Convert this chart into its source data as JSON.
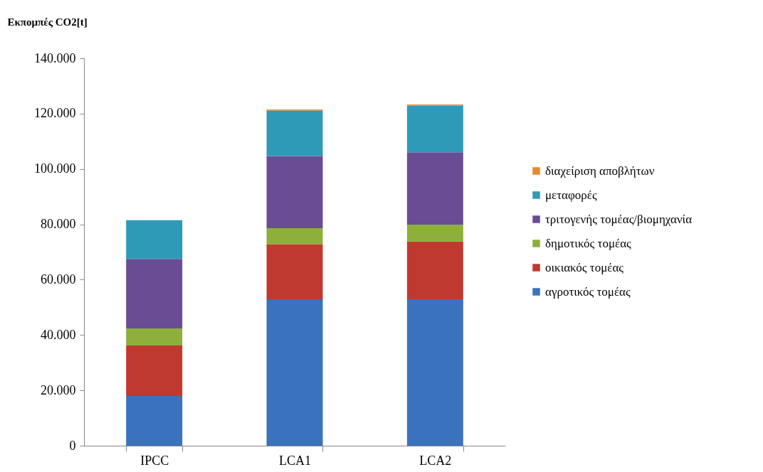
{
  "chart_data": {
    "type": "bar",
    "stacked": true,
    "ylabel": "Εκπομπές CO2[t]",
    "categories": [
      "IPCC",
      "LCA1",
      "LCA2"
    ],
    "series": [
      {
        "name": "αγροτικός τομέας",
        "color": "#3a72bd",
        "values": [
          18000,
          52900,
          52900
        ]
      },
      {
        "name": "οικιακός τομέας",
        "color": "#c0392f",
        "values": [
          18200,
          19900,
          20900
        ]
      },
      {
        "name": "δημοτικός τομέας",
        "color": "#8cb03a",
        "values": [
          6200,
          5800,
          6100
        ]
      },
      {
        "name": "τριτογενής τομέας/βιομηχανία",
        "color": "#6a4c94",
        "values": [
          25100,
          26100,
          26100
        ]
      },
      {
        "name": "μεταφορές",
        "color": "#2e9ab8",
        "values": [
          14000,
          16400,
          16900
        ]
      },
      {
        "name": "διαχείριση αποβλήτων",
        "color": "#e8872b",
        "values": [
          null,
          400,
          400
        ]
      }
    ],
    "ylim": [
      0,
      140000
    ],
    "yticks": [
      0,
      {
        "value": 20000,
        "label": "20.000"
      },
      {
        "value": 40000,
        "label": "40.000"
      },
      {
        "value": 60000,
        "label": "60.000"
      },
      {
        "value": 80000,
        "label": "80.000"
      },
      {
        "value": 100000,
        "label": "100.000"
      },
      {
        "value": 120000,
        "label": "120.000"
      },
      {
        "value": 140000,
        "label": "140.000"
      }
    ],
    "grid": false,
    "legend": "right"
  }
}
